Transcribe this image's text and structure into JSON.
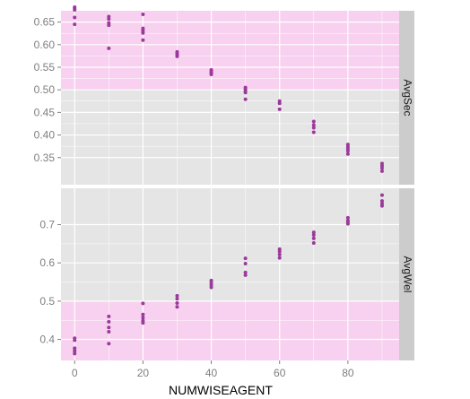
{
  "chart_data": {
    "type": "scatter",
    "title": "",
    "xlabel": "NUMWISEAGENT",
    "xlim": [
      -4,
      95
    ],
    "x_ticks": [
      0,
      20,
      40,
      60,
      80
    ],
    "x_tick_labels": [
      "0",
      "20",
      "40",
      "60",
      "80"
    ],
    "grid": true,
    "legend": "none",
    "colors": {
      "point": "#9b3a9b",
      "panel_bg": "#e5e5e5",
      "highlight": "#f7d1ef",
      "grid": "#ffffff",
      "strip_bg": "#cccccc"
    },
    "panels": [
      {
        "label": "AvgSec",
        "ylim": [
          0.29,
          0.675
        ],
        "y_ticks": [
          0.35,
          0.4,
          0.45,
          0.5,
          0.55,
          0.6,
          0.65
        ],
        "y_tick_labels": [
          "0.35",
          "0.40",
          "0.45",
          "0.50",
          "0.55",
          "0.60",
          "0.65"
        ],
        "highlight_range": [
          0.5,
          0.675
        ],
        "points": [
          [
            0,
            0.683
          ],
          [
            0,
            0.68
          ],
          [
            0,
            0.677
          ],
          [
            0,
            0.66
          ],
          [
            0,
            0.645
          ],
          [
            10,
            0.662
          ],
          [
            10,
            0.657
          ],
          [
            10,
            0.648
          ],
          [
            10,
            0.643
          ],
          [
            10,
            0.592
          ],
          [
            20,
            0.667
          ],
          [
            20,
            0.636
          ],
          [
            20,
            0.631
          ],
          [
            20,
            0.626
          ],
          [
            20,
            0.61
          ],
          [
            30,
            0.584
          ],
          [
            30,
            0.58
          ],
          [
            30,
            0.577
          ],
          [
            30,
            0.574
          ],
          [
            40,
            0.544
          ],
          [
            40,
            0.54
          ],
          [
            40,
            0.537
          ],
          [
            40,
            0.534
          ],
          [
            50,
            0.505
          ],
          [
            50,
            0.502
          ],
          [
            50,
            0.498
          ],
          [
            50,
            0.494
          ],
          [
            50,
            0.479
          ],
          [
            60,
            0.475
          ],
          [
            60,
            0.47
          ],
          [
            60,
            0.457
          ],
          [
            70,
            0.43
          ],
          [
            70,
            0.422
          ],
          [
            70,
            0.416
          ],
          [
            70,
            0.406
          ],
          [
            80,
            0.379
          ],
          [
            80,
            0.374
          ],
          [
            80,
            0.37
          ],
          [
            80,
            0.365
          ],
          [
            80,
            0.358
          ],
          [
            90,
            0.337
          ],
          [
            90,
            0.332
          ],
          [
            90,
            0.327
          ],
          [
            90,
            0.32
          ]
        ]
      },
      {
        "label": "AvgWel",
        "ylim": [
          0.345,
          0.795
        ],
        "y_ticks": [
          0.4,
          0.5,
          0.6,
          0.7
        ],
        "y_tick_labels": [
          "0.4",
          "0.5",
          "0.6",
          "0.7"
        ],
        "highlight_range": [
          0.345,
          0.5
        ],
        "points": [
          [
            0,
            0.403
          ],
          [
            0,
            0.398
          ],
          [
            0,
            0.377
          ],
          [
            0,
            0.37
          ],
          [
            0,
            0.363
          ],
          [
            10,
            0.46
          ],
          [
            10,
            0.446
          ],
          [
            10,
            0.431
          ],
          [
            10,
            0.42
          ],
          [
            10,
            0.389
          ],
          [
            20,
            0.494
          ],
          [
            20,
            0.465
          ],
          [
            20,
            0.457
          ],
          [
            20,
            0.449
          ],
          [
            20,
            0.443
          ],
          [
            30,
            0.514
          ],
          [
            30,
            0.506
          ],
          [
            30,
            0.495
          ],
          [
            30,
            0.485
          ],
          [
            40,
            0.554
          ],
          [
            40,
            0.548
          ],
          [
            40,
            0.542
          ],
          [
            40,
            0.536
          ],
          [
            50,
            0.612
          ],
          [
            50,
            0.598
          ],
          [
            50,
            0.575
          ],
          [
            50,
            0.568
          ],
          [
            60,
            0.636
          ],
          [
            60,
            0.63
          ],
          [
            60,
            0.622
          ],
          [
            60,
            0.613
          ],
          [
            70,
            0.68
          ],
          [
            70,
            0.673
          ],
          [
            70,
            0.664
          ],
          [
            70,
            0.652
          ],
          [
            80,
            0.718
          ],
          [
            80,
            0.711
          ],
          [
            80,
            0.707
          ],
          [
            80,
            0.702
          ],
          [
            90,
            0.777
          ],
          [
            90,
            0.762
          ],
          [
            90,
            0.755
          ],
          [
            90,
            0.749
          ]
        ]
      }
    ]
  }
}
